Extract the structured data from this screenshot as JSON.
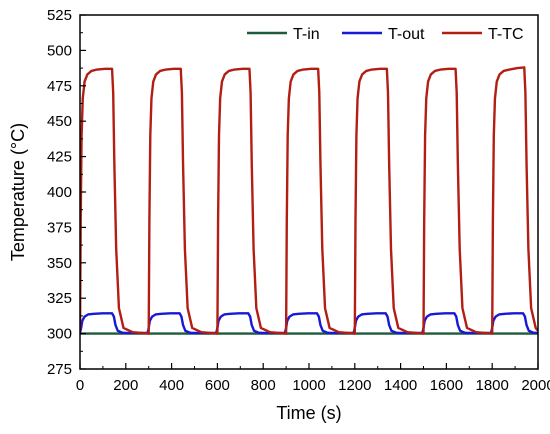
{
  "chart_data": {
    "type": "line",
    "xlabel": "Time (s)",
    "ylabel": "Temperature (°C)",
    "xlim": [
      0,
      2000
    ],
    "ylim": [
      275,
      525
    ],
    "x_ticks": [
      0,
      200,
      400,
      600,
      800,
      1000,
      1200,
      1400,
      1600,
      1800,
      2000
    ],
    "y_ticks": [
      275,
      300,
      325,
      350,
      375,
      400,
      425,
      450,
      475,
      500,
      525
    ],
    "grid": false,
    "legend_position": "top-right",
    "series": [
      {
        "name": "T-in",
        "color": "#1e5b3a",
        "x": [
          0,
          2000
        ],
        "y": [
          300,
          300
        ]
      },
      {
        "name": "T-out",
        "color": "#1818d6",
        "x": [
          0,
          5,
          10,
          20,
          35,
          60,
          100,
          140,
          148,
          155,
          165,
          185,
          200,
          295,
          300,
          305,
          315,
          330,
          355,
          395,
          435,
          443,
          450,
          460,
          480,
          495,
          595,
          600,
          605,
          615,
          630,
          655,
          695,
          735,
          743,
          750,
          760,
          780,
          795,
          895,
          900,
          905,
          915,
          930,
          955,
          995,
          1035,
          1043,
          1050,
          1060,
          1080,
          1095,
          1195,
          1200,
          1205,
          1215,
          1230,
          1255,
          1295,
          1335,
          1343,
          1350,
          1360,
          1380,
          1395,
          1495,
          1500,
          1505,
          1515,
          1530,
          1555,
          1595,
          1635,
          1643,
          1650,
          1660,
          1680,
          1695,
          1795,
          1800,
          1805,
          1815,
          1830,
          1855,
          1895,
          1935,
          1943,
          1950,
          1960,
          1980,
          2000
        ],
        "y": [
          300.5,
          304,
          309,
          312,
          313.5,
          314,
          314.3,
          314.3,
          312,
          306,
          302,
          300.6,
          300.5,
          300.5,
          304,
          309,
          312,
          313.5,
          314,
          314.3,
          314.3,
          312,
          306,
          302,
          300.6,
          300.5,
          300.5,
          304,
          309,
          312,
          313.5,
          314,
          314.3,
          314.3,
          312,
          306,
          302,
          300.6,
          300.5,
          300.5,
          304,
          309,
          312,
          313.5,
          314,
          314.3,
          314.3,
          312,
          306,
          302,
          300.6,
          300.5,
          300.5,
          304,
          309,
          312,
          313.5,
          314,
          314.3,
          314.3,
          312,
          306,
          302,
          300.6,
          300.5,
          300.5,
          304,
          309,
          312,
          313.5,
          314,
          314.3,
          314.3,
          312,
          306,
          302,
          300.6,
          300.5,
          300.5,
          304,
          309,
          312,
          313.5,
          314,
          314.3,
          314.3,
          312,
          306,
          302,
          300.6,
          300.5
        ]
      },
      {
        "name": "T-TC",
        "color": "#b21e12",
        "x": [
          0,
          3,
          7,
          12,
          20,
          32,
          50,
          75,
          110,
          140,
          145,
          150,
          158,
          170,
          190,
          230,
          280,
          300,
          303,
          307,
          312,
          320,
          332,
          350,
          375,
          410,
          440,
          445,
          450,
          458,
          470,
          490,
          530,
          580,
          600,
          603,
          607,
          612,
          620,
          632,
          650,
          675,
          710,
          740,
          745,
          750,
          758,
          770,
          790,
          830,
          880,
          900,
          903,
          907,
          912,
          920,
          932,
          950,
          975,
          1010,
          1040,
          1045,
          1050,
          1058,
          1070,
          1090,
          1130,
          1180,
          1200,
          1203,
          1207,
          1212,
          1220,
          1232,
          1250,
          1275,
          1310,
          1340,
          1345,
          1350,
          1358,
          1370,
          1390,
          1430,
          1480,
          1500,
          1503,
          1507,
          1512,
          1520,
          1532,
          1550,
          1575,
          1610,
          1640,
          1645,
          1650,
          1658,
          1670,
          1690,
          1730,
          1780,
          1800,
          1803,
          1807,
          1812,
          1820,
          1832,
          1850,
          1875,
          1910,
          1940,
          1945,
          1950,
          1958,
          1970,
          1990,
          2000
        ],
        "y": [
          301,
          380,
          440,
          466,
          478,
          483,
          485.5,
          486.5,
          487,
          487,
          470,
          420,
          360,
          318,
          304,
          301,
          300.3,
          300,
          380,
          440,
          466,
          478,
          483,
          485.5,
          486.5,
          487,
          487,
          470,
          420,
          360,
          318,
          304,
          301,
          300.3,
          300,
          380,
          440,
          466,
          478,
          483,
          485.5,
          486.5,
          487,
          487,
          470,
          420,
          360,
          318,
          304,
          301,
          300.3,
          300,
          380,
          440,
          466,
          478,
          483,
          485.5,
          486.5,
          487,
          487,
          470,
          420,
          360,
          318,
          304,
          301,
          300.3,
          300,
          380,
          440,
          466,
          478,
          483,
          485.5,
          486.5,
          487,
          487,
          470,
          420,
          360,
          318,
          304,
          301,
          300.3,
          300,
          380,
          440,
          466,
          478,
          483,
          485.5,
          486.5,
          487,
          487,
          470,
          420,
          360,
          318,
          304,
          301,
          300.3,
          300,
          380,
          440,
          466,
          478,
          483,
          485.5,
          486.5,
          487.5,
          488,
          470,
          420,
          360,
          318,
          304,
          302
        ]
      }
    ]
  }
}
